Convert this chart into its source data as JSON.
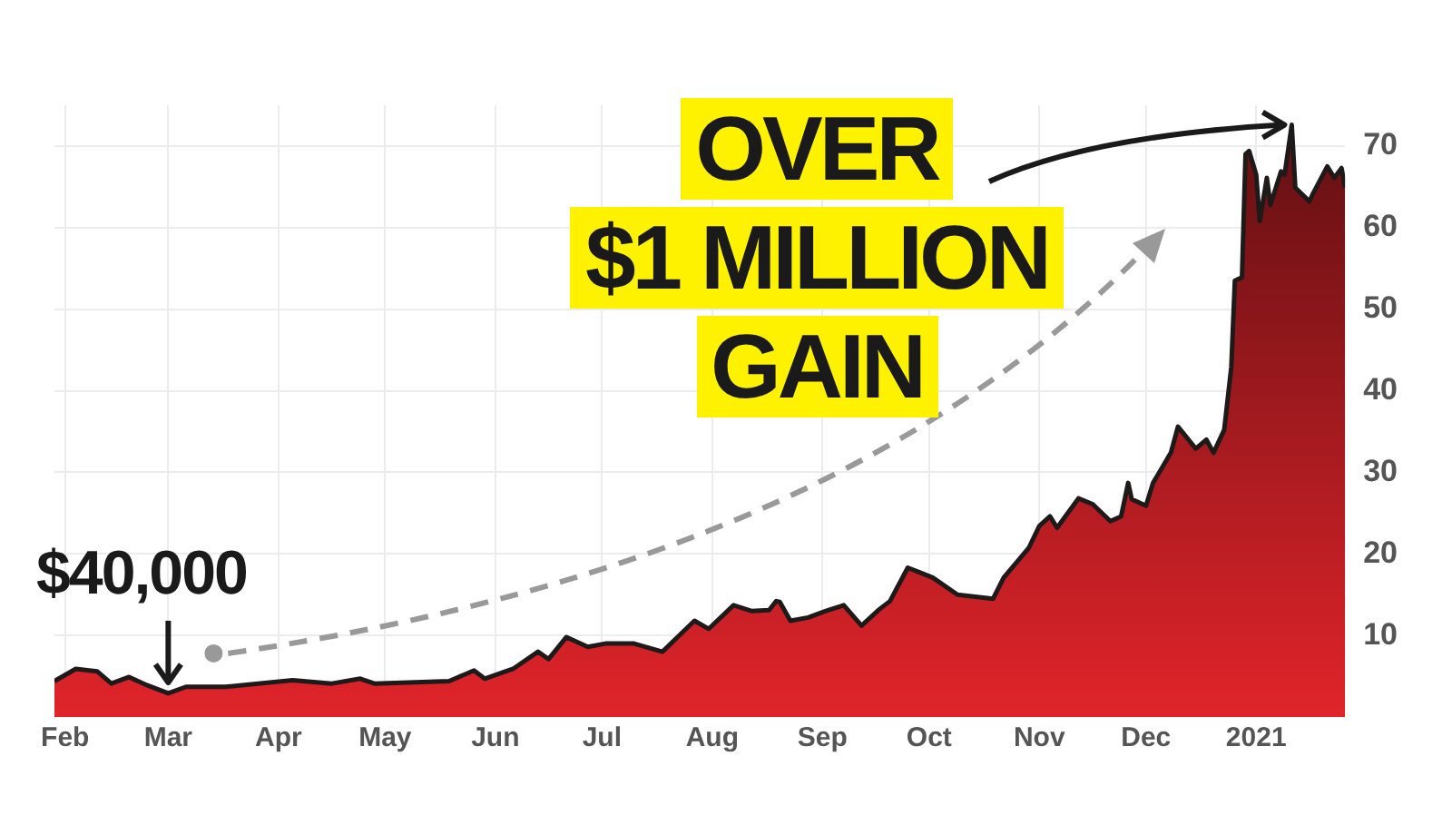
{
  "chart_data": {
    "type": "area",
    "color": "#e0242a",
    "x": [
      "2020-01-29",
      "2020-02-04",
      "2020-02-10",
      "2020-02-14",
      "2020-02-19",
      "2020-02-24",
      "2020-03-01",
      "2020-03-06",
      "2020-03-17",
      "2020-04-05",
      "2020-04-16",
      "2020-04-24",
      "2020-04-28",
      "2020-05-19",
      "2020-05-26",
      "2020-05-29",
      "2020-06-06",
      "2020-06-13",
      "2020-06-16",
      "2020-06-21",
      "2020-06-27",
      "2020-07-02",
      "2020-07-10",
      "2020-07-18",
      "2020-07-27",
      "2020-07-31",
      "2020-08-07",
      "2020-08-12",
      "2020-08-17",
      "2020-08-19",
      "2020-08-20",
      "2020-08-23",
      "2020-08-28",
      "2020-09-02",
      "2020-09-07",
      "2020-09-12",
      "2020-09-17",
      "2020-09-20",
      "2020-09-25",
      "2020-10-02",
      "2020-10-09",
      "2020-10-19",
      "2020-10-22",
      "2020-10-29",
      "2020-11-01",
      "2020-11-04",
      "2020-11-06",
      "2020-11-12",
      "2020-11-16",
      "2020-11-21",
      "2020-11-24",
      "2020-11-26",
      "2020-11-27",
      "2020-12-01",
      "2020-12-03",
      "2020-12-08",
      "2020-12-10",
      "2020-12-15",
      "2020-12-18",
      "2020-12-20",
      "2020-12-23",
      "2020-12-25",
      "2020-12-26",
      "2020-12-28",
      "2020-12-29",
      "2020-12-30",
      "2021-01-01",
      "2021-01-02",
      "2021-01-04",
      "2021-01-05",
      "2021-01-08",
      "2021-01-09",
      "2021-01-11",
      "2021-01-12",
      "2021-01-16",
      "2021-01-17",
      "2021-01-21",
      "2021-01-23",
      "2021-01-25",
      "2021-01-26"
    ],
    "values": [
      4.4,
      5.9,
      5.6,
      4.1,
      4.9,
      3.9,
      2.9,
      3.7,
      3.7,
      4.5,
      4.1,
      4.7,
      4.1,
      4.4,
      5.7,
      4.7,
      5.9,
      8.0,
      7.1,
      9.8,
      8.6,
      9.0,
      9.0,
      8.0,
      11.8,
      10.8,
      13.7,
      13.0,
      13.1,
      14.2,
      14.1,
      11.8,
      12.2,
      13.0,
      13.7,
      11.2,
      13.2,
      14.2,
      18.3,
      17.1,
      15.0,
      14.5,
      17.1,
      20.7,
      23.4,
      24.6,
      23.2,
      26.8,
      26.1,
      24.0,
      24.6,
      28.7,
      26.7,
      25.9,
      28.7,
      32.4,
      35.6,
      32.9,
      34.0,
      32.4,
      35.2,
      42.9,
      53.5,
      53.9,
      69.0,
      69.4,
      66.5,
      60.8,
      66.1,
      62.8,
      66.9,
      66.5,
      72.6,
      64.9,
      63.2,
      64.2,
      67.5,
      66.1,
      67.3,
      64.9
    ],
    "xlim": [
      "2020-01-29",
      "2021-01-26"
    ],
    "xticks": [
      {
        "value": "2020-02-01",
        "label": "Feb"
      },
      {
        "value": "2020-03-01",
        "label": "Mar"
      },
      {
        "value": "2020-04-01",
        "label": "Apr"
      },
      {
        "value": "2020-05-01",
        "label": "May"
      },
      {
        "value": "2020-06-01",
        "label": "Jun"
      },
      {
        "value": "2020-07-01",
        "label": "Jul"
      },
      {
        "value": "2020-08-01",
        "label": "Aug"
      },
      {
        "value": "2020-09-01",
        "label": "Sep"
      },
      {
        "value": "2020-10-01",
        "label": "Oct"
      },
      {
        "value": "2020-11-01",
        "label": "Nov"
      },
      {
        "value": "2020-12-01",
        "label": "Dec"
      },
      {
        "value": "2021-01-01",
        "label": "2021"
      }
    ],
    "ylim": [
      0,
      75
    ],
    "yticks": [
      10,
      20,
      30,
      40,
      50,
      60,
      70
    ],
    "grid": true,
    "legend": false,
    "annotations": [
      {
        "text": "$40,000",
        "x": "2020-03-01",
        "y": 2.9
      },
      {
        "text": "OVER $1 MILLION GAIN",
        "x": "2021-01-11",
        "y": 72.6
      }
    ]
  }
}
